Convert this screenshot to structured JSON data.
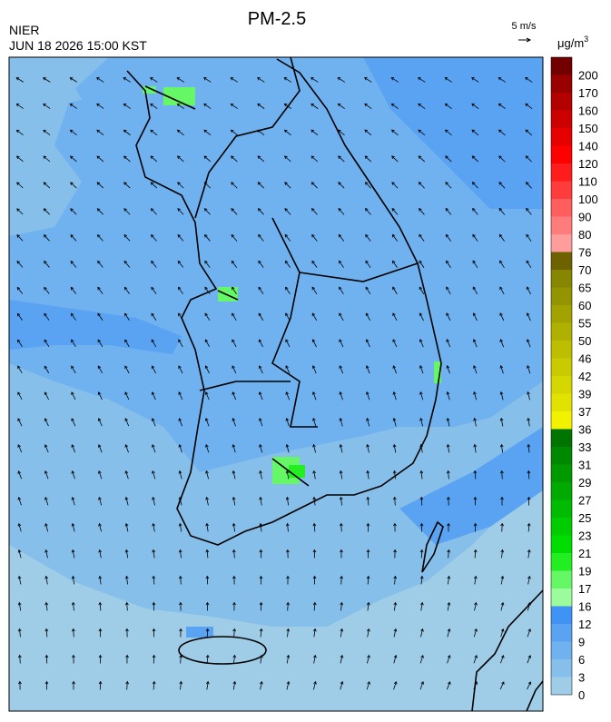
{
  "header": {
    "title": "PM-2.5",
    "agency": "NIER",
    "datetime": "JUN 18 2026 15:00 KST"
  },
  "wind_legend": {
    "label": "5 m/s"
  },
  "colorbar": {
    "unit": "μg/m",
    "unit_power": "3",
    "levels": [
      0,
      3,
      6,
      9,
      12,
      16,
      17,
      19,
      21,
      23,
      25,
      27,
      29,
      31,
      33,
      36,
      37,
      39,
      42,
      46,
      50,
      55,
      60,
      65,
      70,
      76,
      80,
      90,
      100,
      110,
      120,
      140,
      150,
      160,
      170,
      200
    ],
    "colors": [
      "#9fcde8",
      "#87bfeb",
      "#70b1ef",
      "#5aa3f3",
      "#3f93f5",
      "#9cfc9c",
      "#66f766",
      "#22ee22",
      "#00dd00",
      "#00cc00",
      "#00bb00",
      "#00aa00",
      "#009900",
      "#008800",
      "#007400",
      "#f2f200",
      "#e2e200",
      "#d6d600",
      "#caca00",
      "#bebe00",
      "#b0b000",
      "#a2a200",
      "#949400",
      "#868600",
      "#6e6200",
      "#ff9c9c",
      "#ff7c7c",
      "#ff5e5e",
      "#ff3c3c",
      "#ff1c1c",
      "#ff0000",
      "#e60000",
      "#cc0000",
      "#b30000",
      "#990000",
      "#720000"
    ]
  }
}
